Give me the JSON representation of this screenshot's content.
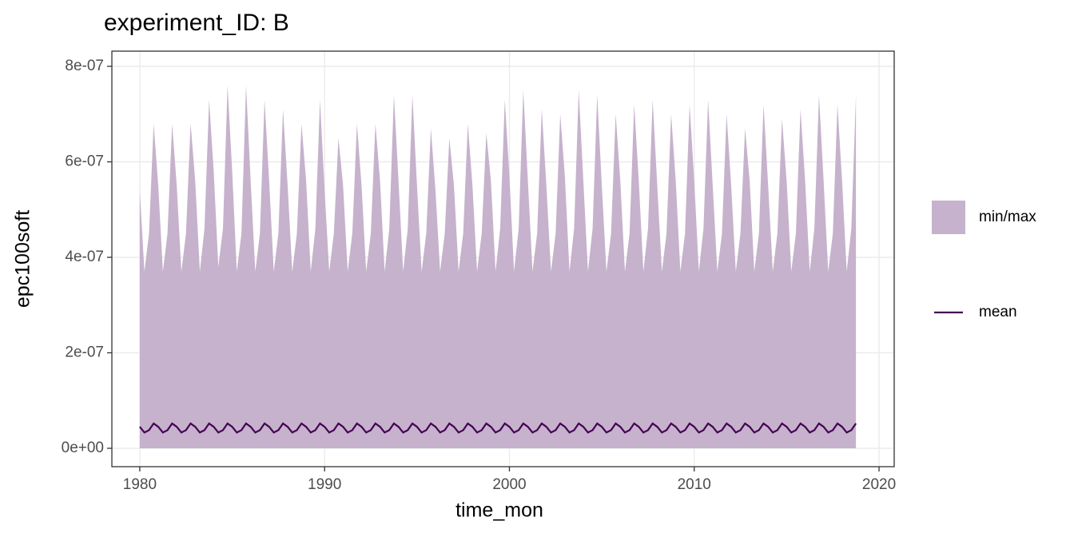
{
  "chart_data": {
    "type": "ribbon-line",
    "title": "experiment_ID: B",
    "x_label": "time_mon",
    "y_label": "epc100soft",
    "xlim": [
      1978.49,
      2020.82
    ],
    "xticks": [
      1980,
      1990,
      2000,
      2010,
      2020
    ],
    "ylim": [
      -3.85e-08,
      8.318e-07
    ],
    "yticks": [
      {
        "value": 0,
        "label": "0e+00"
      },
      {
        "value": 2e-07,
        "label": "2e-07"
      },
      {
        "value": 4e-07,
        "label": "4e-07"
      },
      {
        "value": 6e-07,
        "label": "6e-07"
      },
      {
        "value": 8e-07,
        "label": "8e-07"
      }
    ],
    "grid": true,
    "legend": "right",
    "x": [
      1980,
      1980.25,
      1980.5,
      1980.75,
      1981,
      1981.25,
      1981.5,
      1981.75,
      1982,
      1982.25,
      1982.5,
      1982.75,
      1983,
      1983.25,
      1983.5,
      1983.75,
      1984,
      1984.25,
      1984.5,
      1984.75,
      1985,
      1985.25,
      1985.5,
      1985.75,
      1986,
      1986.25,
      1986.5,
      1986.75,
      1987,
      1987.25,
      1987.5,
      1987.75,
      1988,
      1988.25,
      1988.5,
      1988.75,
      1989,
      1989.25,
      1989.5,
      1989.75,
      1990,
      1990.25,
      1990.5,
      1990.75,
      1991,
      1991.25,
      1991.5,
      1991.75,
      1992,
      1992.25,
      1992.5,
      1992.75,
      1993,
      1993.25,
      1993.5,
      1993.75,
      1994,
      1994.25,
      1994.5,
      1994.75,
      1995,
      1995.25,
      1995.5,
      1995.75,
      1996,
      1996.25,
      1996.5,
      1996.75,
      1997,
      1997.25,
      1997.5,
      1997.75,
      1998,
      1998.25,
      1998.5,
      1998.75,
      1999,
      1999.25,
      1999.5,
      1999.75,
      2000,
      2000.25,
      2000.5,
      2000.75,
      2001,
      2001.25,
      2001.5,
      2001.75,
      2002,
      2002.25,
      2002.5,
      2002.75,
      2003,
      2003.25,
      2003.5,
      2003.75,
      2004,
      2004.25,
      2004.5,
      2004.75,
      2005,
      2005.25,
      2005.5,
      2005.75,
      2006,
      2006.25,
      2006.5,
      2006.75,
      2007,
      2007.25,
      2007.5,
      2007.75,
      2008,
      2008.25,
      2008.5,
      2008.75,
      2009,
      2009.25,
      2009.5,
      2009.75,
      2010,
      2010.25,
      2010.5,
      2010.75,
      2011,
      2011.25,
      2011.5,
      2011.75,
      2012,
      2012.25,
      2012.5,
      2012.75,
      2013,
      2013.25,
      2013.5,
      2013.75,
      2014,
      2014.25,
      2014.5,
      2014.75,
      2015,
      2015.25,
      2015.5,
      2015.75,
      2016,
      2016.25,
      2016.5,
      2016.75,
      2017,
      2017.25,
      2017.5,
      2017.75,
      2018,
      2018.25,
      2018.5,
      2018.75
    ],
    "series": [
      {
        "name": "min/max",
        "color": "#c6b2cc",
        "ymin": [
          0,
          0,
          0,
          0,
          0,
          0,
          0,
          0,
          0,
          0,
          0,
          0,
          0,
          0,
          0,
          0,
          0,
          0,
          0,
          0,
          0,
          0,
          0,
          0,
          0,
          0,
          0,
          0,
          0,
          0,
          0,
          0,
          0,
          0,
          0,
          0,
          0,
          0,
          0,
          0,
          0,
          0,
          0,
          0,
          0,
          0,
          0,
          0,
          0,
          0,
          0,
          0,
          0,
          0,
          0,
          0,
          0,
          0,
          0,
          0,
          0,
          0,
          0,
          0,
          0,
          0,
          0,
          0,
          0,
          0,
          0,
          0,
          0,
          0,
          0,
          0,
          0,
          0,
          0,
          0,
          0,
          0,
          0,
          0,
          0,
          0,
          0,
          0,
          0,
          0,
          0,
          0,
          0,
          0,
          0,
          0,
          0,
          0,
          0,
          0,
          0,
          0,
          0,
          0,
          0,
          0,
          0,
          0,
          0,
          0,
          0,
          0,
          0,
          0,
          0,
          0,
          0,
          0,
          0,
          0,
          0,
          0,
          0,
          0,
          0,
          0,
          0,
          0,
          0,
          0,
          0,
          0,
          0,
          0,
          0,
          0,
          0,
          0,
          0,
          0,
          0,
          0,
          0,
          0,
          0,
          0,
          0,
          0,
          0,
          0,
          0,
          0,
          0,
          0,
          0,
          0
        ],
        "ymax": [
          5.4e-07,
          3.7e-07,
          4.5e-07,
          6.8e-07,
          5.5e-07,
          3.7e-07,
          4.5e-07,
          6.8e-07,
          5.5e-07,
          3.7e-07,
          4.5e-07,
          6.8e-07,
          5.6e-07,
          3.7e-07,
          4.6e-07,
          7.3e-07,
          5.8e-07,
          3.8e-07,
          4.6e-07,
          7.6e-07,
          5.8e-07,
          3.7e-07,
          4.5e-07,
          7.6e-07,
          5.6e-07,
          3.7e-07,
          4.5e-07,
          7.3e-07,
          5.6e-07,
          3.7e-07,
          4.5e-07,
          7.1e-07,
          5.5e-07,
          3.7e-07,
          4.5e-07,
          6.8e-07,
          5.6e-07,
          3.7e-07,
          4.6e-07,
          7.3e-07,
          5.4e-07,
          3.7e-07,
          4.5e-07,
          6.5e-07,
          5.5e-07,
          3.7e-07,
          4.5e-07,
          6.8e-07,
          5.5e-07,
          3.7e-07,
          4.5e-07,
          6.8e-07,
          5.6e-07,
          3.7e-07,
          4.6e-07,
          7.4e-07,
          5.6e-07,
          3.7e-07,
          4.6e-07,
          7.4e-07,
          5.5e-07,
          3.7e-07,
          4.5e-07,
          6.7e-07,
          5.4e-07,
          3.7e-07,
          4.5e-07,
          6.5e-07,
          5.5e-07,
          3.7e-07,
          4.5e-07,
          6.8e-07,
          5.5e-07,
          3.7e-07,
          4.5e-07,
          6.6e-07,
          5.6e-07,
          3.7e-07,
          4.6e-07,
          7.3e-07,
          5.7e-07,
          3.7e-07,
          4.6e-07,
          7.5e-07,
          5.6e-07,
          3.7e-07,
          4.5e-07,
          7.1e-07,
          5.5e-07,
          3.7e-07,
          4.5e-07,
          7e-07,
          5.7e-07,
          3.7e-07,
          4.6e-07,
          7.5e-07,
          5.6e-07,
          3.7e-07,
          4.6e-07,
          7.4e-07,
          5.5e-07,
          3.7e-07,
          4.5e-07,
          7e-07,
          5.6e-07,
          3.7e-07,
          4.5e-07,
          7.2e-07,
          5.6e-07,
          3.7e-07,
          4.6e-07,
          7.3e-07,
          5.5e-07,
          3.7e-07,
          4.5e-07,
          7e-07,
          5.6e-07,
          3.7e-07,
          4.5e-07,
          7.2e-07,
          5.6e-07,
          3.7e-07,
          4.6e-07,
          7.3e-07,
          5.5e-07,
          3.7e-07,
          4.5e-07,
          7e-07,
          5.5e-07,
          3.7e-07,
          4.5e-07,
          6.7e-07,
          5.6e-07,
          3.7e-07,
          4.5e-07,
          7.2e-07,
          5.5e-07,
          3.7e-07,
          4.5e-07,
          6.9e-07,
          5.6e-07,
          3.7e-07,
          4.5e-07,
          7.1e-07,
          5.6e-07,
          3.7e-07,
          4.6e-07,
          7.4e-07,
          5.6e-07,
          3.7e-07,
          4.5e-07,
          7.2e-07,
          5.6e-07,
          3.7e-07,
          4.6e-07,
          7.4e-07
        ]
      },
      {
        "name": "mean",
        "color": "#440154",
        "values": [
          4.5e-08,
          3.3e-08,
          3.8e-08,
          5.2e-08,
          4.5e-08,
          3.3e-08,
          3.8e-08,
          5.2e-08,
          4.5e-08,
          3.3e-08,
          3.8e-08,
          5.2e-08,
          4.5e-08,
          3.3e-08,
          3.8e-08,
          5.2e-08,
          4.5e-08,
          3.3e-08,
          3.8e-08,
          5.2e-08,
          4.5e-08,
          3.3e-08,
          3.8e-08,
          5.2e-08,
          4.5e-08,
          3.3e-08,
          3.8e-08,
          5.2e-08,
          4.5e-08,
          3.3e-08,
          3.8e-08,
          5.2e-08,
          4.5e-08,
          3.3e-08,
          3.8e-08,
          5.2e-08,
          4.5e-08,
          3.3e-08,
          3.8e-08,
          5.2e-08,
          4.5e-08,
          3.3e-08,
          3.8e-08,
          5.2e-08,
          4.5e-08,
          3.3e-08,
          3.8e-08,
          5.2e-08,
          4.5e-08,
          3.3e-08,
          3.8e-08,
          5.2e-08,
          4.5e-08,
          3.3e-08,
          3.8e-08,
          5.2e-08,
          4.5e-08,
          3.3e-08,
          3.8e-08,
          5.2e-08,
          4.5e-08,
          3.3e-08,
          3.8e-08,
          5.2e-08,
          4.5e-08,
          3.3e-08,
          3.8e-08,
          5.2e-08,
          4.5e-08,
          3.3e-08,
          3.8e-08,
          5.2e-08,
          4.5e-08,
          3.3e-08,
          3.8e-08,
          5.2e-08,
          4.5e-08,
          3.3e-08,
          3.8e-08,
          5.2e-08,
          4.5e-08,
          3.3e-08,
          3.8e-08,
          5.2e-08,
          4.5e-08,
          3.3e-08,
          3.8e-08,
          5.2e-08,
          4.5e-08,
          3.3e-08,
          3.8e-08,
          5.2e-08,
          4.5e-08,
          3.3e-08,
          3.8e-08,
          5.2e-08,
          4.5e-08,
          3.3e-08,
          3.8e-08,
          5.2e-08,
          4.5e-08,
          3.3e-08,
          3.8e-08,
          5.2e-08,
          4.5e-08,
          3.3e-08,
          3.8e-08,
          5.2e-08,
          4.5e-08,
          3.3e-08,
          3.8e-08,
          5.2e-08,
          4.5e-08,
          3.3e-08,
          3.8e-08,
          5.2e-08,
          4.5e-08,
          3.3e-08,
          3.8e-08,
          5.2e-08,
          4.5e-08,
          3.3e-08,
          3.8e-08,
          5.2e-08,
          4.5e-08,
          3.3e-08,
          3.8e-08,
          5.2e-08,
          4.5e-08,
          3.3e-08,
          3.8e-08,
          5.2e-08,
          4.5e-08,
          3.3e-08,
          3.8e-08,
          5.2e-08,
          4.5e-08,
          3.3e-08,
          3.8e-08,
          5.2e-08,
          4.5e-08,
          3.3e-08,
          3.8e-08,
          5.2e-08,
          4.5e-08,
          3.3e-08,
          3.8e-08,
          5.2e-08,
          4.5e-08,
          3.3e-08,
          3.8e-08,
          5.2e-08,
          4.5e-08,
          3.3e-08,
          3.8e-08,
          5.2e-08
        ]
      }
    ]
  }
}
